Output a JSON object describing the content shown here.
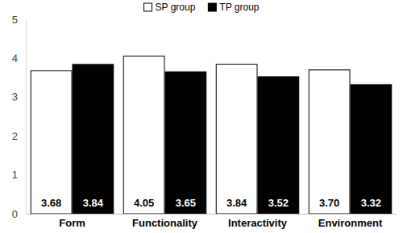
{
  "chart_data": {
    "type": "bar",
    "categories": [
      "Form",
      "Functionality",
      "Interactivity",
      "Environment"
    ],
    "series": [
      {
        "name": "SP group",
        "color": "#ffffff",
        "values": [
          3.68,
          4.05,
          3.84,
          3.7
        ],
        "value_labels": [
          "3.68",
          "4.05",
          "3.84",
          "3.70"
        ]
      },
      {
        "name": "TP group",
        "color": "#000000",
        "values": [
          3.84,
          3.65,
          3.52,
          3.32
        ],
        "value_labels": [
          "3.84",
          "3.65",
          "3.52",
          "3.32"
        ]
      }
    ],
    "ylim": [
      0,
      5
    ],
    "yticks": [
      0,
      1,
      2,
      3,
      4,
      5
    ],
    "grid": false,
    "legend": "top",
    "data_labels": true
  }
}
